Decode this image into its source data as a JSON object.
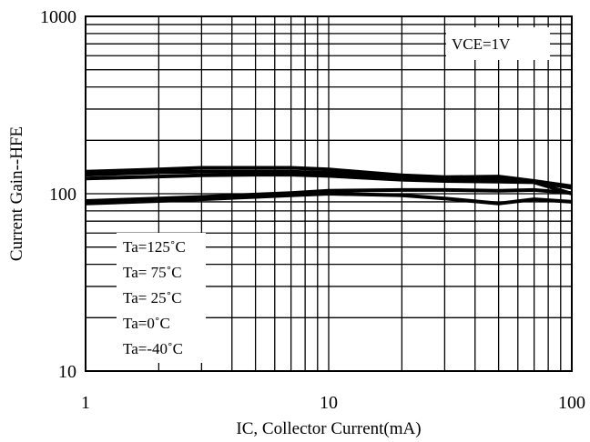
{
  "chart_data": {
    "type": "line",
    "title": "",
    "xlabel": "IC, Collector Current(mA)",
    "ylabel": "Current Gain--HFE",
    "xscale": "log",
    "yscale": "log",
    "xlim": [
      1,
      100
    ],
    "ylim": [
      10,
      1000
    ],
    "grid": true,
    "x_ticks": [
      1,
      10,
      100
    ],
    "x_tick_labels": [
      "1",
      "10",
      "100"
    ],
    "y_ticks": [
      10,
      100,
      1000
    ],
    "y_tick_labels": [
      "10",
      "100",
      "1000"
    ],
    "condition_label": "VCE=1V",
    "legend_position": "bottom-left",
    "legend": [
      "Ta=125˚C",
      "Ta= 75˚C",
      "Ta= 25˚C",
      "Ta=0˚C",
      "Ta=-40˚C"
    ],
    "series": [
      {
        "x": [
          1,
          2,
          3,
          5,
          7,
          10,
          20,
          30,
          50,
          70,
          100
        ],
        "y": [
          133,
          137,
          140,
          140,
          140,
          137,
          127,
          124,
          125,
          118,
          110
        ]
      },
      {
        "x": [
          1,
          2,
          3,
          5,
          7,
          10,
          20,
          30,
          50,
          70,
          100
        ],
        "y": [
          128,
          132,
          133,
          133,
          133,
          131,
          124,
          121,
          121,
          117,
          108
        ]
      },
      {
        "x": [
          1,
          2,
          3,
          5,
          7,
          10,
          20,
          30,
          50,
          70,
          100
        ],
        "y": [
          122,
          125,
          127,
          128,
          128,
          126,
          120,
          118,
          117,
          116,
          100
        ]
      },
      {
        "x": [
          1,
          2,
          3,
          5,
          7,
          10,
          20,
          30,
          50,
          70,
          100
        ],
        "y": [
          91,
          94,
          96,
          99,
          101,
          104,
          105,
          105,
          104,
          105,
          101
        ]
      },
      {
        "x": [
          1,
          2,
          3,
          5,
          7,
          10,
          20,
          30,
          50,
          70,
          100
        ],
        "y": [
          88,
          91,
          93,
          96,
          98,
          100,
          98,
          94,
          88,
          93,
          90
        ]
      }
    ]
  }
}
